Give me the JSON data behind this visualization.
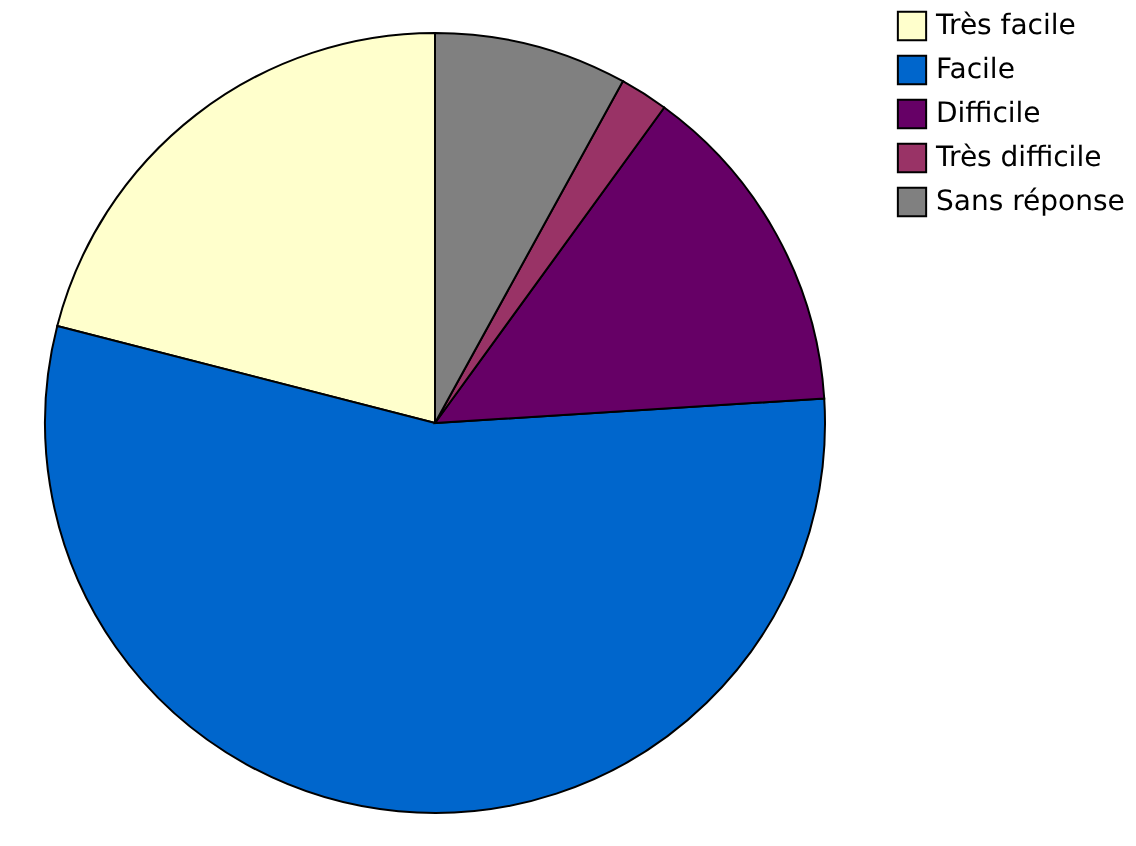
{
  "chart_data": {
    "type": "pie",
    "categories": [
      "Très facile",
      "Facile",
      "Difficile",
      "Très difficile",
      "Sans réponse"
    ],
    "values": [
      21,
      55,
      14,
      2,
      8
    ],
    "colors": [
      "#ffffcc",
      "#0066cc",
      "#660066",
      "#993366",
      "#808080"
    ],
    "legend": "right"
  }
}
